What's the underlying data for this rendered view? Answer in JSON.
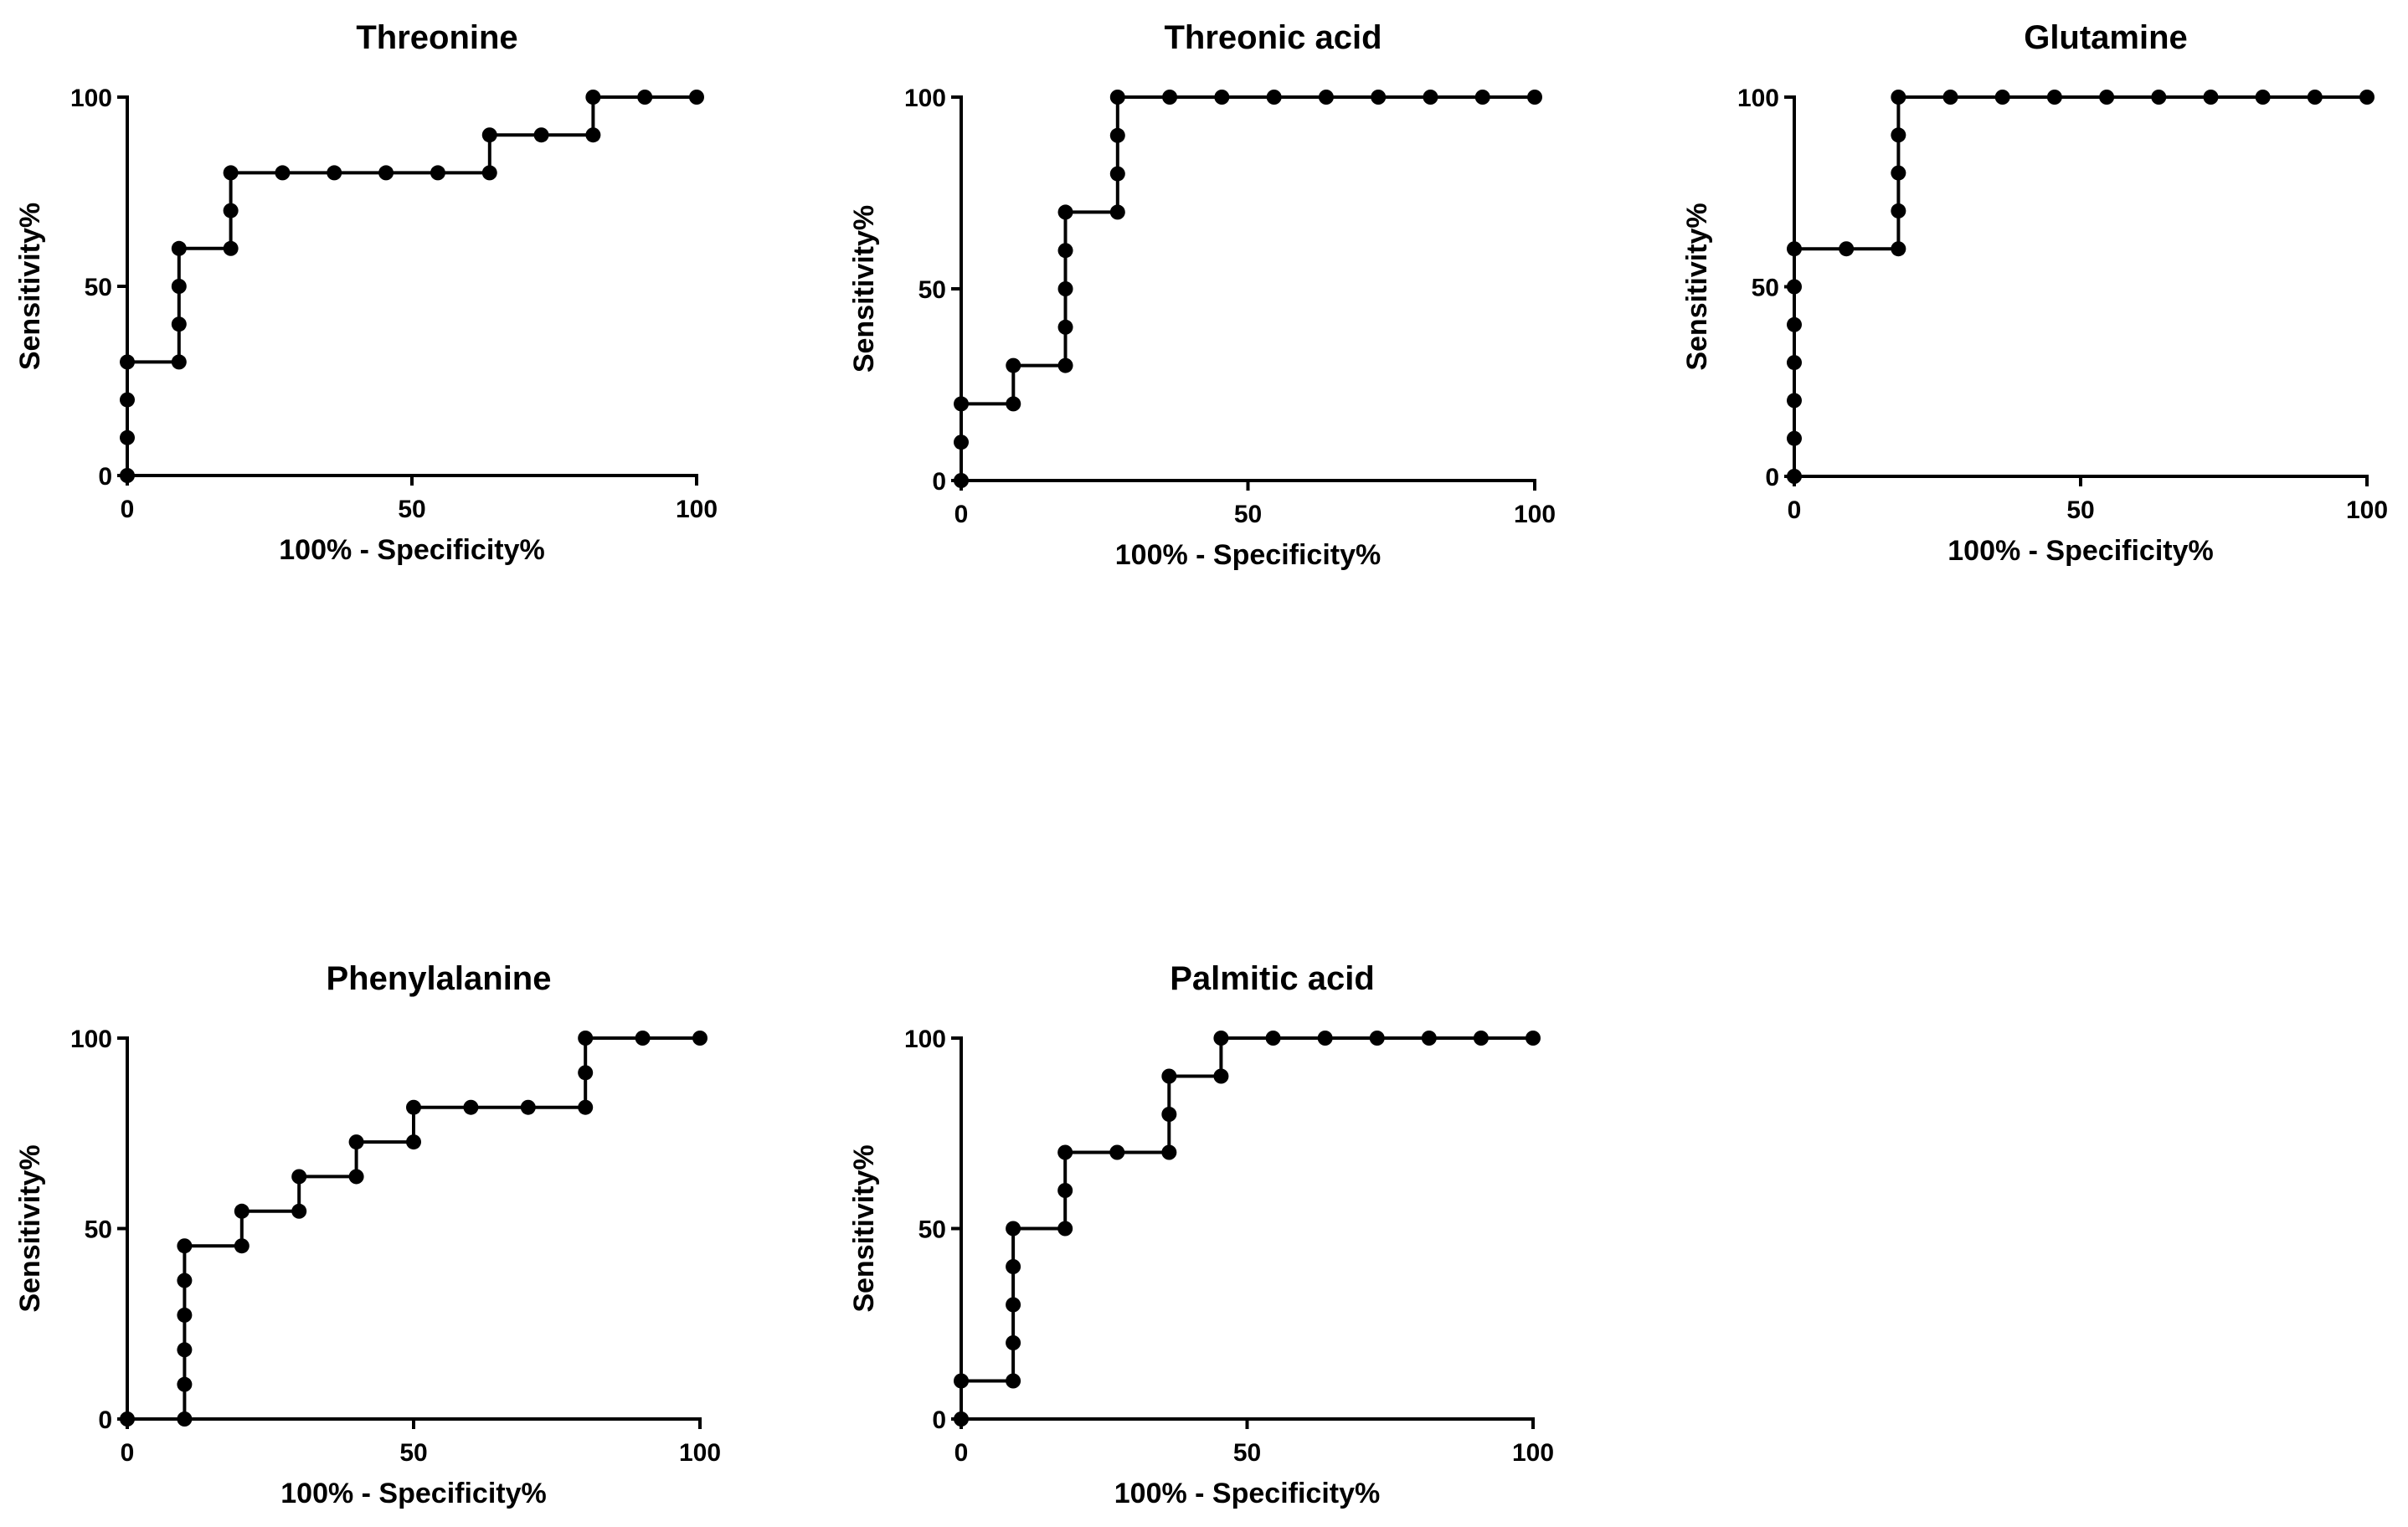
{
  "chart_data": [
    {
      "type": "line",
      "title": "Threonine",
      "xlabel": "100% - Specificity%",
      "ylabel": "Sensitivity%",
      "xlim": [
        0,
        100
      ],
      "ylim": [
        0,
        100
      ],
      "xticks": [
        "0",
        "50",
        "100"
      ],
      "yticks": [
        "0",
        "50",
        "100"
      ],
      "x": [
        0,
        0,
        0,
        0,
        9.09,
        9.09,
        9.09,
        9.09,
        18.18,
        18.18,
        18.18,
        27.27,
        36.36,
        45.45,
        54.55,
        63.64,
        63.64,
        72.73,
        81.82,
        81.82,
        90.91,
        100
      ],
      "y": [
        0,
        10,
        20,
        30,
        30,
        40,
        50,
        60,
        60,
        70,
        80,
        80,
        80,
        80,
        80,
        80,
        90,
        90,
        90,
        100,
        100,
        100
      ]
    },
    {
      "type": "line",
      "title": "Threonic acid",
      "xlabel": "100% - Specificity%",
      "ylabel": "Sensitivity%",
      "xlim": [
        0,
        100
      ],
      "ylim": [
        0,
        100
      ],
      "xticks": [
        "0",
        "50",
        "100"
      ],
      "yticks": [
        "0",
        "50",
        "100"
      ],
      "x": [
        0,
        0,
        0,
        9.09,
        9.09,
        18.18,
        18.18,
        18.18,
        18.18,
        18.18,
        27.27,
        27.27,
        27.27,
        27.27,
        36.36,
        45.45,
        54.55,
        63.64,
        72.73,
        81.82,
        90.91,
        100
      ],
      "y": [
        0,
        10,
        20,
        20,
        30,
        30,
        40,
        50,
        60,
        70,
        70,
        80,
        90,
        100,
        100,
        100,
        100,
        100,
        100,
        100,
        100,
        100
      ]
    },
    {
      "type": "line",
      "title": "Glutamine",
      "xlabel": "100% - Specificity%",
      "ylabel": "Sensitivity%",
      "xlim": [
        0,
        100
      ],
      "ylim": [
        0,
        100
      ],
      "xticks": [
        "0",
        "50",
        "100"
      ],
      "yticks": [
        "0",
        "50",
        "100"
      ],
      "x": [
        0,
        0,
        0,
        0,
        0,
        0,
        0,
        9.09,
        18.18,
        18.18,
        18.18,
        18.18,
        18.18,
        27.27,
        36.36,
        45.45,
        54.55,
        63.64,
        72.73,
        81.82,
        90.91,
        100
      ],
      "y": [
        0,
        10,
        20,
        30,
        40,
        50,
        60,
        60,
        60,
        70,
        80,
        90,
        100,
        100,
        100,
        100,
        100,
        100,
        100,
        100,
        100,
        100
      ]
    },
    {
      "type": "line",
      "title": "Phenylalanine",
      "xlabel": "100% - Specificity%",
      "ylabel": "Sensitivity%",
      "xlim": [
        0,
        100
      ],
      "ylim": [
        0,
        100
      ],
      "xticks": [
        "0",
        "50",
        "100"
      ],
      "yticks": [
        "0",
        "50",
        "100"
      ],
      "x": [
        0,
        10,
        10,
        10,
        10,
        10,
        10,
        20,
        20,
        30,
        30,
        40,
        40,
        50,
        50,
        60,
        70,
        80,
        80,
        80,
        90,
        100
      ],
      "y": [
        0,
        0,
        9.09,
        18.18,
        27.27,
        36.36,
        45.45,
        45.45,
        54.55,
        54.55,
        63.64,
        63.64,
        72.73,
        72.73,
        81.82,
        81.82,
        81.82,
        81.82,
        90.91,
        100,
        100,
        100
      ]
    },
    {
      "type": "line",
      "title": "Palmitic acid",
      "xlabel": "100% - Specificity%",
      "ylabel": "Sensitivity%",
      "xlim": [
        0,
        100
      ],
      "ylim": [
        0,
        100
      ],
      "xticks": [
        "0",
        "50",
        "100"
      ],
      "yticks": [
        "0",
        "50",
        "100"
      ],
      "x": [
        0,
        0,
        9.09,
        9.09,
        9.09,
        9.09,
        9.09,
        18.18,
        18.18,
        18.18,
        27.27,
        36.36,
        36.36,
        36.36,
        45.45,
        45.45,
        54.55,
        63.64,
        72.73,
        81.82,
        90.91,
        100
      ],
      "y": [
        0,
        10,
        10,
        20,
        30,
        40,
        50,
        50,
        60,
        70,
        70,
        70,
        80,
        90,
        90,
        100,
        100,
        100,
        100,
        100,
        100,
        100
      ]
    }
  ]
}
